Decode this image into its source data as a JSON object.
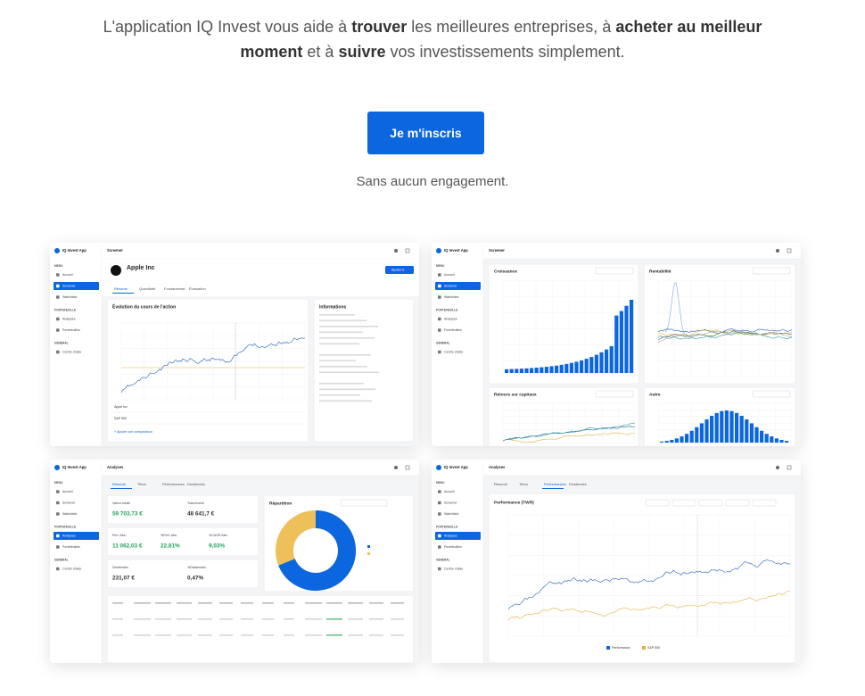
{
  "hero": {
    "segments": [
      {
        "text": "L'application IQ Invest vous aide à ",
        "bold": false
      },
      {
        "text": "trouver",
        "bold": true
      },
      {
        "text": " les meilleures entreprises, à ",
        "bold": false
      },
      {
        "text": "acheter au meilleur moment",
        "bold": true
      },
      {
        "text": " et à ",
        "bold": false
      },
      {
        "text": "suivre",
        "bold": true
      },
      {
        "text": " vos investissements simplement.",
        "bold": false
      }
    ],
    "cta": "Je m'inscris",
    "note": "Sans aucun engagement."
  },
  "screenshots": [
    {
      "app": "IQ Invest App",
      "page": "Screener",
      "nav": [
        {
          "label": "MENU",
          "section": true
        },
        {
          "label": "Accueil"
        },
        {
          "label": "Screener",
          "active": true
        },
        {
          "label": "Watchlists"
        },
        {
          "label": "PORTEFEUILLE",
          "section": true
        },
        {
          "label": "Analyses"
        },
        {
          "label": "Portefeuilles"
        },
        {
          "label": "GÉNÉRAL",
          "section": true
        },
        {
          "label": "Centre d'aide"
        }
      ],
      "company": "Apple Inc",
      "button": "Ajouter à",
      "tabs": [
        "Résumé",
        "Quantitatif",
        "Fondamental",
        "Évaluation"
      ],
      "chart_title": "Évolution du cours de l'action",
      "info_title": "Informations",
      "rows": [
        "Apple Inc",
        "S&P 500"
      ],
      "add_compare": "+ Ajouter une comparaison"
    },
    {
      "app": "IQ Invest App",
      "page": "Screener",
      "nav": [
        {
          "label": "MENU",
          "section": true
        },
        {
          "label": "Accueil"
        },
        {
          "label": "Screener",
          "active": true
        },
        {
          "label": "Watchlists"
        },
        {
          "label": "PORTEFEUILLE",
          "section": true
        },
        {
          "label": "Analyses"
        },
        {
          "label": "Portefeuilles"
        },
        {
          "label": "GÉNÉRAL",
          "section": true
        },
        {
          "label": "Centre d'aide"
        }
      ],
      "cards": [
        "Croissance",
        "Rentabilité",
        "Retours sur capitaux",
        "Autre"
      ]
    },
    {
      "app": "IQ Invest App",
      "page": "Analyses",
      "nav": [
        {
          "label": "MENU",
          "section": true
        },
        {
          "label": "Accueil"
        },
        {
          "label": "Screener"
        },
        {
          "label": "Watchlists"
        },
        {
          "label": "PORTEFEUILLE",
          "section": true
        },
        {
          "label": "Analyses",
          "active": true
        },
        {
          "label": "Portefeuilles"
        },
        {
          "label": "GÉNÉRAL",
          "section": true
        },
        {
          "label": "Centre d'aide"
        }
      ],
      "tabs": [
        "Résumé",
        "Titres",
        "Performances",
        "Dividendes"
      ],
      "kpis": [
        [
          {
            "label": "Valeur totale",
            "value": "59 703,73 €",
            "tone": "green"
          },
          {
            "label": "Total investi",
            "value": "48 641,7 €",
            "tone": "dark"
          }
        ],
        [
          {
            "label": "Perf. Abs.",
            "value": "11 062,03 €",
            "tone": "green"
          },
          {
            "label": "%Perf. Abs.",
            "value": "22,81%",
            "tone": "green"
          },
          {
            "label": "%CAGR Abs.",
            "value": "9,03%",
            "tone": "green"
          }
        ],
        [
          {
            "label": "Dividendes",
            "value": "231,07 €",
            "tone": "dark"
          },
          {
            "label": "%Dividendes",
            "value": "0,47%",
            "tone": "dark"
          }
        ]
      ],
      "allocation_title": "Répartition"
    },
    {
      "app": "IQ Invest App",
      "page": "Analyses",
      "nav": [
        {
          "label": "MENU",
          "section": true
        },
        {
          "label": "Accueil"
        },
        {
          "label": "Screener"
        },
        {
          "label": "Watchlists"
        },
        {
          "label": "PORTEFEUILLE",
          "section": true
        },
        {
          "label": "Analyses",
          "active": true
        },
        {
          "label": "Portefeuilles"
        },
        {
          "label": "GÉNÉRAL",
          "section": true
        },
        {
          "label": "Centre d'aide"
        }
      ],
      "tabs": [
        "Résumé",
        "Titres",
        "Performances",
        "Dividendes"
      ],
      "active_tab": 2,
      "chart_title": "Performance (TWR)",
      "legend": [
        "Performance",
        "S&P 500"
      ]
    }
  ]
}
